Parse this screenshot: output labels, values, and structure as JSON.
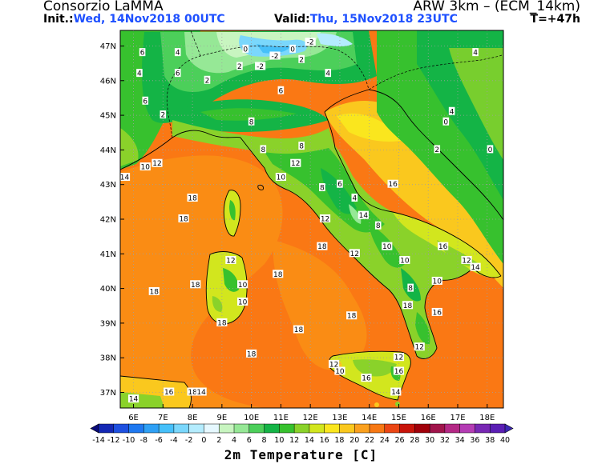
{
  "header": {
    "org": "Consorzio LaMMA",
    "model": "ARW 3km – (ECM_14km)",
    "init_label": "Init.:",
    "init_value": "Wed, 14Nov2018 00UTC",
    "valid_label": "Valid:",
    "valid_value": "Thu, 15Nov2018 23UTC",
    "time_step": "T=+47h"
  },
  "map": {
    "lat_labels": [
      "47N",
      "46N",
      "45N",
      "44N",
      "43N",
      "42N",
      "41N",
      "40N",
      "39N",
      "38N",
      "37N"
    ],
    "lon_labels": [
      "6E",
      "7E",
      "8E",
      "9E",
      "10E",
      "11E",
      "12E",
      "13E",
      "14E",
      "15E",
      "16E",
      "17E",
      "18E"
    ],
    "sea_temp_main": "18",
    "contour_labels": [
      {
        "t": "18",
        "lon": 8.0,
        "lat": 42.6
      },
      {
        "t": "18",
        "lon": 7.7,
        "lat": 42.0
      },
      {
        "t": "18",
        "lon": 6.7,
        "lat": 39.9
      },
      {
        "t": "18",
        "lon": 8.1,
        "lat": 40.1
      },
      {
        "t": "18",
        "lon": 10.9,
        "lat": 40.4
      },
      {
        "t": "18",
        "lon": 11.6,
        "lat": 38.8
      },
      {
        "t": "18",
        "lon": 10.0,
        "lat": 38.1
      },
      {
        "t": "18",
        "lon": 9.0,
        "lat": 39.0
      },
      {
        "t": "18",
        "lon": 8.0,
        "lat": 37.0
      },
      {
        "t": "18",
        "lon": 15.3,
        "lat": 39.5
      },
      {
        "t": "18",
        "lon": 13.4,
        "lat": 39.2
      },
      {
        "t": "18",
        "lon": 12.4,
        "lat": 41.2
      },
      {
        "t": "16",
        "lon": 7.2,
        "lat": 37.0
      },
      {
        "t": "16",
        "lon": 14.8,
        "lat": 43.0
      },
      {
        "t": "16",
        "lon": 16.5,
        "lat": 41.2
      },
      {
        "t": "16",
        "lon": 16.3,
        "lat": 39.3
      },
      {
        "t": "16",
        "lon": 15.0,
        "lat": 37.6
      },
      {
        "t": "16",
        "lon": 13.9,
        "lat": 37.4
      },
      {
        "t": "14",
        "lon": 6.0,
        "lat": 36.8
      },
      {
        "t": "14",
        "lon": 8.3,
        "lat": 37.0
      },
      {
        "t": "14",
        "lon": 5.7,
        "lat": 43.2
      },
      {
        "t": "14",
        "lon": 13.8,
        "lat": 42.1
      },
      {
        "t": "14",
        "lon": 17.6,
        "lat": 40.6
      },
      {
        "t": "14",
        "lon": 14.9,
        "lat": 37.0
      },
      {
        "t": "12",
        "lon": 6.8,
        "lat": 43.6
      },
      {
        "t": "12",
        "lon": 11.5,
        "lat": 43.6
      },
      {
        "t": "12",
        "lon": 12.5,
        "lat": 42.0
      },
      {
        "t": "12",
        "lon": 13.5,
        "lat": 41.0
      },
      {
        "t": "12",
        "lon": 9.3,
        "lat": 40.8
      },
      {
        "t": "12",
        "lon": 15.7,
        "lat": 38.3
      },
      {
        "t": "12",
        "lon": 12.8,
        "lat": 37.8
      },
      {
        "t": "12",
        "lon": 15.0,
        "lat": 38.0
      },
      {
        "t": "12",
        "lon": 17.3,
        "lat": 40.8
      },
      {
        "t": "10",
        "lon": 6.4,
        "lat": 43.5
      },
      {
        "t": "10",
        "lon": 9.7,
        "lat": 40.1
      },
      {
        "t": "10",
        "lon": 9.7,
        "lat": 39.6
      },
      {
        "t": "10",
        "lon": 11.0,
        "lat": 43.2
      },
      {
        "t": "10",
        "lon": 13.0,
        "lat": 37.6
      },
      {
        "t": "10",
        "lon": 15.2,
        "lat": 40.8
      },
      {
        "t": "10",
        "lon": 16.3,
        "lat": 40.2
      },
      {
        "t": "10",
        "lon": 14.6,
        "lat": 41.2
      },
      {
        "t": "8",
        "lon": 10.4,
        "lat": 44.0
      },
      {
        "t": "8",
        "lon": 11.7,
        "lat": 44.1
      },
      {
        "t": "8",
        "lon": 12.4,
        "lat": 42.9
      },
      {
        "t": "8",
        "lon": 15.4,
        "lat": 40.0
      },
      {
        "t": "8",
        "lon": 14.3,
        "lat": 41.8
      },
      {
        "t": "8",
        "lon": 10.0,
        "lat": 44.8
      },
      {
        "t": "6",
        "lon": 6.3,
        "lat": 46.8
      },
      {
        "t": "6",
        "lon": 6.4,
        "lat": 45.4
      },
      {
        "t": "6",
        "lon": 7.5,
        "lat": 46.2
      },
      {
        "t": "6",
        "lon": 11.0,
        "lat": 45.7
      },
      {
        "t": "6",
        "lon": 13.0,
        "lat": 43.0
      },
      {
        "t": "4",
        "lon": 6.2,
        "lat": 46.2
      },
      {
        "t": "4",
        "lon": 7.5,
        "lat": 46.8
      },
      {
        "t": "4",
        "lon": 12.6,
        "lat": 46.2
      },
      {
        "t": "4",
        "lon": 16.8,
        "lat": 45.1
      },
      {
        "t": "4",
        "lon": 17.6,
        "lat": 46.8
      },
      {
        "t": "4",
        "lon": 13.5,
        "lat": 42.6
      },
      {
        "t": "2",
        "lon": 8.5,
        "lat": 46.0
      },
      {
        "t": "2",
        "lon": 9.6,
        "lat": 46.4
      },
      {
        "t": "2",
        "lon": 11.7,
        "lat": 46.6
      },
      {
        "t": "2",
        "lon": 7.0,
        "lat": 45.0
      },
      {
        "t": "2",
        "lon": 16.3,
        "lat": 44.0
      },
      {
        "t": "0",
        "lon": 9.8,
        "lat": 46.9
      },
      {
        "t": "0",
        "lon": 11.4,
        "lat": 46.9
      },
      {
        "t": "0",
        "lon": 16.6,
        "lat": 44.8
      },
      {
        "t": "0",
        "lon": 18.1,
        "lat": 44.0
      },
      {
        "t": "-2",
        "lon": 10.3,
        "lat": 46.4
      },
      {
        "t": "-2",
        "lon": 10.8,
        "lat": 46.7
      },
      {
        "t": "-2",
        "lon": 12.0,
        "lat": 47.1
      }
    ]
  },
  "colorbar": {
    "ticks": [
      "-14",
      "-12",
      "-10",
      "-8",
      "-6",
      "-4",
      "-2",
      "0",
      "2",
      "4",
      "6",
      "8",
      "10",
      "12",
      "14",
      "16",
      "18",
      "20",
      "22",
      "24",
      "26",
      "28",
      "30",
      "32",
      "34",
      "36",
      "38",
      "40"
    ],
    "colors": [
      "#0a0a7a",
      "#1428b4",
      "#1e50e0",
      "#1e78f0",
      "#2ea0f5",
      "#46c0fa",
      "#7ad7fc",
      "#b4ecfe",
      "#e6f8ff",
      "#c8f5c0",
      "#96e896",
      "#4ccf5a",
      "#14b446",
      "#37c12e",
      "#8ad22a",
      "#d2e61e",
      "#fae61e",
      "#fac81e",
      "#faa01e",
      "#f77814",
      "#eb4614",
      "#c8140a",
      "#a0000a",
      "#a0144b",
      "#b42885",
      "#b43cb4",
      "#7828b4",
      "#5a1eb4",
      "#3c28b4"
    ],
    "title": "2m Temperature [C]"
  }
}
